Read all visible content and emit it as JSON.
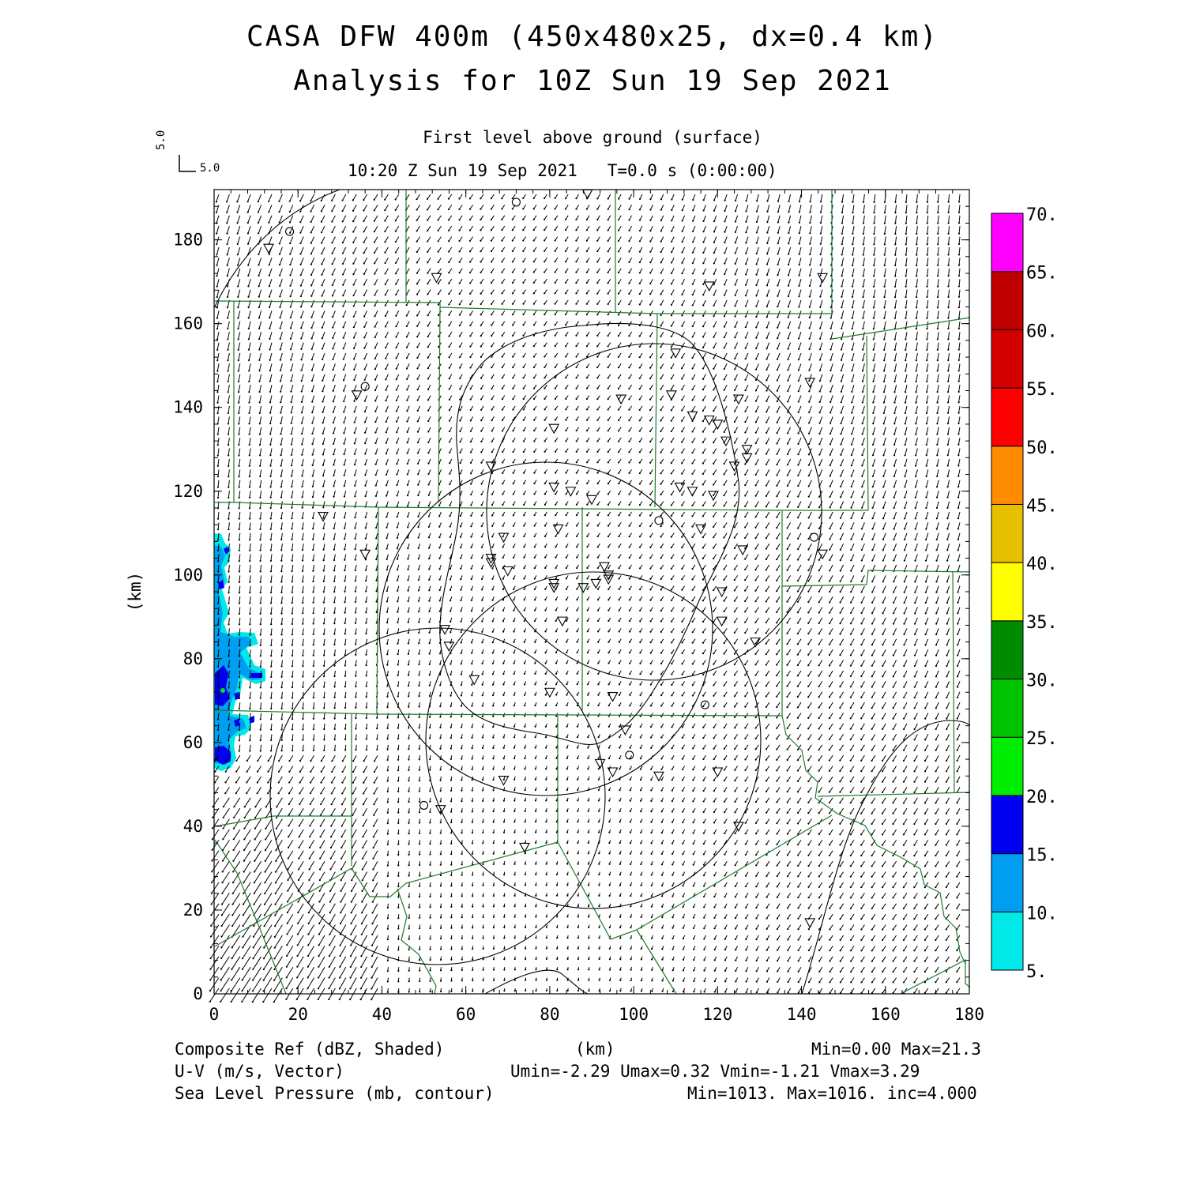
{
  "title": "CASA DFW 400m (450x480x25, dx=0.4 km)",
  "subtitle": "Analysis for 10Z Sun 19 Sep 2021",
  "level": "First level above ground (surface)",
  "valid_time": "10:20 Z Sun 19 Sep 2021",
  "forecast_time": "T=0.0 s (0:00:00)",
  "vector_reference": {
    "u": "5.0",
    "v": "5.0"
  },
  "x_axis": {
    "label": "(km)",
    "ticks": [
      0,
      20,
      40,
      60,
      80,
      100,
      120,
      140,
      160,
      180
    ],
    "range": [
      0,
      180
    ]
  },
  "y_axis": {
    "label": "(km)",
    "ticks": [
      0,
      20,
      40,
      60,
      80,
      100,
      120,
      140,
      160,
      180
    ],
    "range": [
      0,
      192
    ]
  },
  "colorbar": {
    "labels": [
      "5.",
      "10.",
      "15.",
      "20.",
      "25.",
      "30.",
      "35.",
      "40.",
      "45.",
      "50.",
      "55.",
      "60.",
      "65.",
      "70."
    ],
    "colors": [
      "#00e8e8",
      "#009ef0",
      "#0000f0",
      "#00ee00",
      "#00c400",
      "#008c00",
      "#ffff00",
      "#e6c000",
      "#ff8c00",
      "#ff0000",
      "#d40000",
      "#c00000",
      "#ff00ff"
    ]
  },
  "footer": {
    "field1_label": "Composite Ref (dBZ, Shaded)",
    "field1_stats": "Min=0.00 Max=21.3",
    "field2_label": "U-V (m/s, Vector)",
    "field2_stats": "Umin=-2.29 Umax=0.32 Vmin=-1.21 Vmax=3.29",
    "field3_label": "Sea Level Pressure (mb, contour)",
    "field3_stats": "Min=1013. Max=1016. inc=4.000"
  },
  "chart_data": {
    "type": "map",
    "fields": [
      "Composite Ref (dBZ)",
      "U-V wind vectors (m/s)",
      "Sea Level Pressure (mb)"
    ],
    "composite_ref_range_dbz": [
      0.0,
      21.3
    ],
    "u_range": [
      -2.29,
      0.32
    ],
    "v_range": [
      -1.21,
      3.29
    ],
    "slp": {
      "min": 1013,
      "max": 1016,
      "inc": 4.0
    },
    "radar_range_rings_center_km": [
      [
        80,
        127
      ],
      [
        107,
        115
      ],
      [
        99,
        81
      ],
      [
        79,
        67
      ],
      [
        56,
        62
      ]
    ],
    "station_triangles_km": [
      [
        13,
        178
      ],
      [
        89,
        191
      ],
      [
        53,
        171
      ],
      [
        118,
        169
      ],
      [
        145,
        171
      ],
      [
        34,
        143
      ],
      [
        26,
        114
      ],
      [
        36,
        105
      ],
      [
        66,
        126
      ],
      [
        81,
        135
      ],
      [
        97,
        142
      ],
      [
        110,
        153
      ],
      [
        109,
        143
      ],
      [
        114,
        138
      ],
      [
        118,
        137
      ],
      [
        120,
        136
      ],
      [
        125,
        142
      ],
      [
        122,
        132
      ],
      [
        127,
        130
      ],
      [
        127,
        128
      ],
      [
        124,
        126
      ],
      [
        111,
        121
      ],
      [
        114,
        120
      ],
      [
        119,
        119
      ],
      [
        81,
        121
      ],
      [
        85,
        120
      ],
      [
        90,
        118
      ],
      [
        82,
        111
      ],
      [
        116,
        111
      ],
      [
        126,
        106
      ],
      [
        145,
        105
      ],
      [
        69,
        109
      ],
      [
        66,
        104
      ],
      [
        66,
        103
      ],
      [
        70,
        101
      ],
      [
        93,
        102
      ],
      [
        94,
        100
      ],
      [
        94,
        99
      ],
      [
        91,
        98
      ],
      [
        88,
        97
      ],
      [
        81,
        98
      ],
      [
        81,
        97
      ],
      [
        121,
        96
      ],
      [
        83,
        89
      ],
      [
        121,
        89
      ],
      [
        129,
        84
      ],
      [
        55,
        87
      ],
      [
        56,
        83
      ],
      [
        62,
        75
      ],
      [
        80,
        72
      ],
      [
        95,
        71
      ],
      [
        98,
        63
      ],
      [
        92,
        55
      ],
      [
        95,
        53
      ],
      [
        106,
        52
      ],
      [
        120,
        53
      ],
      [
        69,
        51
      ],
      [
        54,
        44
      ],
      [
        125,
        40
      ],
      [
        74,
        35
      ],
      [
        142,
        17
      ],
      [
        142,
        146
      ]
    ],
    "station_circles_km": [
      [
        18,
        182
      ],
      [
        72,
        189
      ],
      [
        36,
        145
      ],
      [
        106,
        113
      ],
      [
        143,
        109
      ],
      [
        117,
        69
      ],
      [
        99,
        57
      ],
      [
        50,
        45
      ]
    ]
  }
}
